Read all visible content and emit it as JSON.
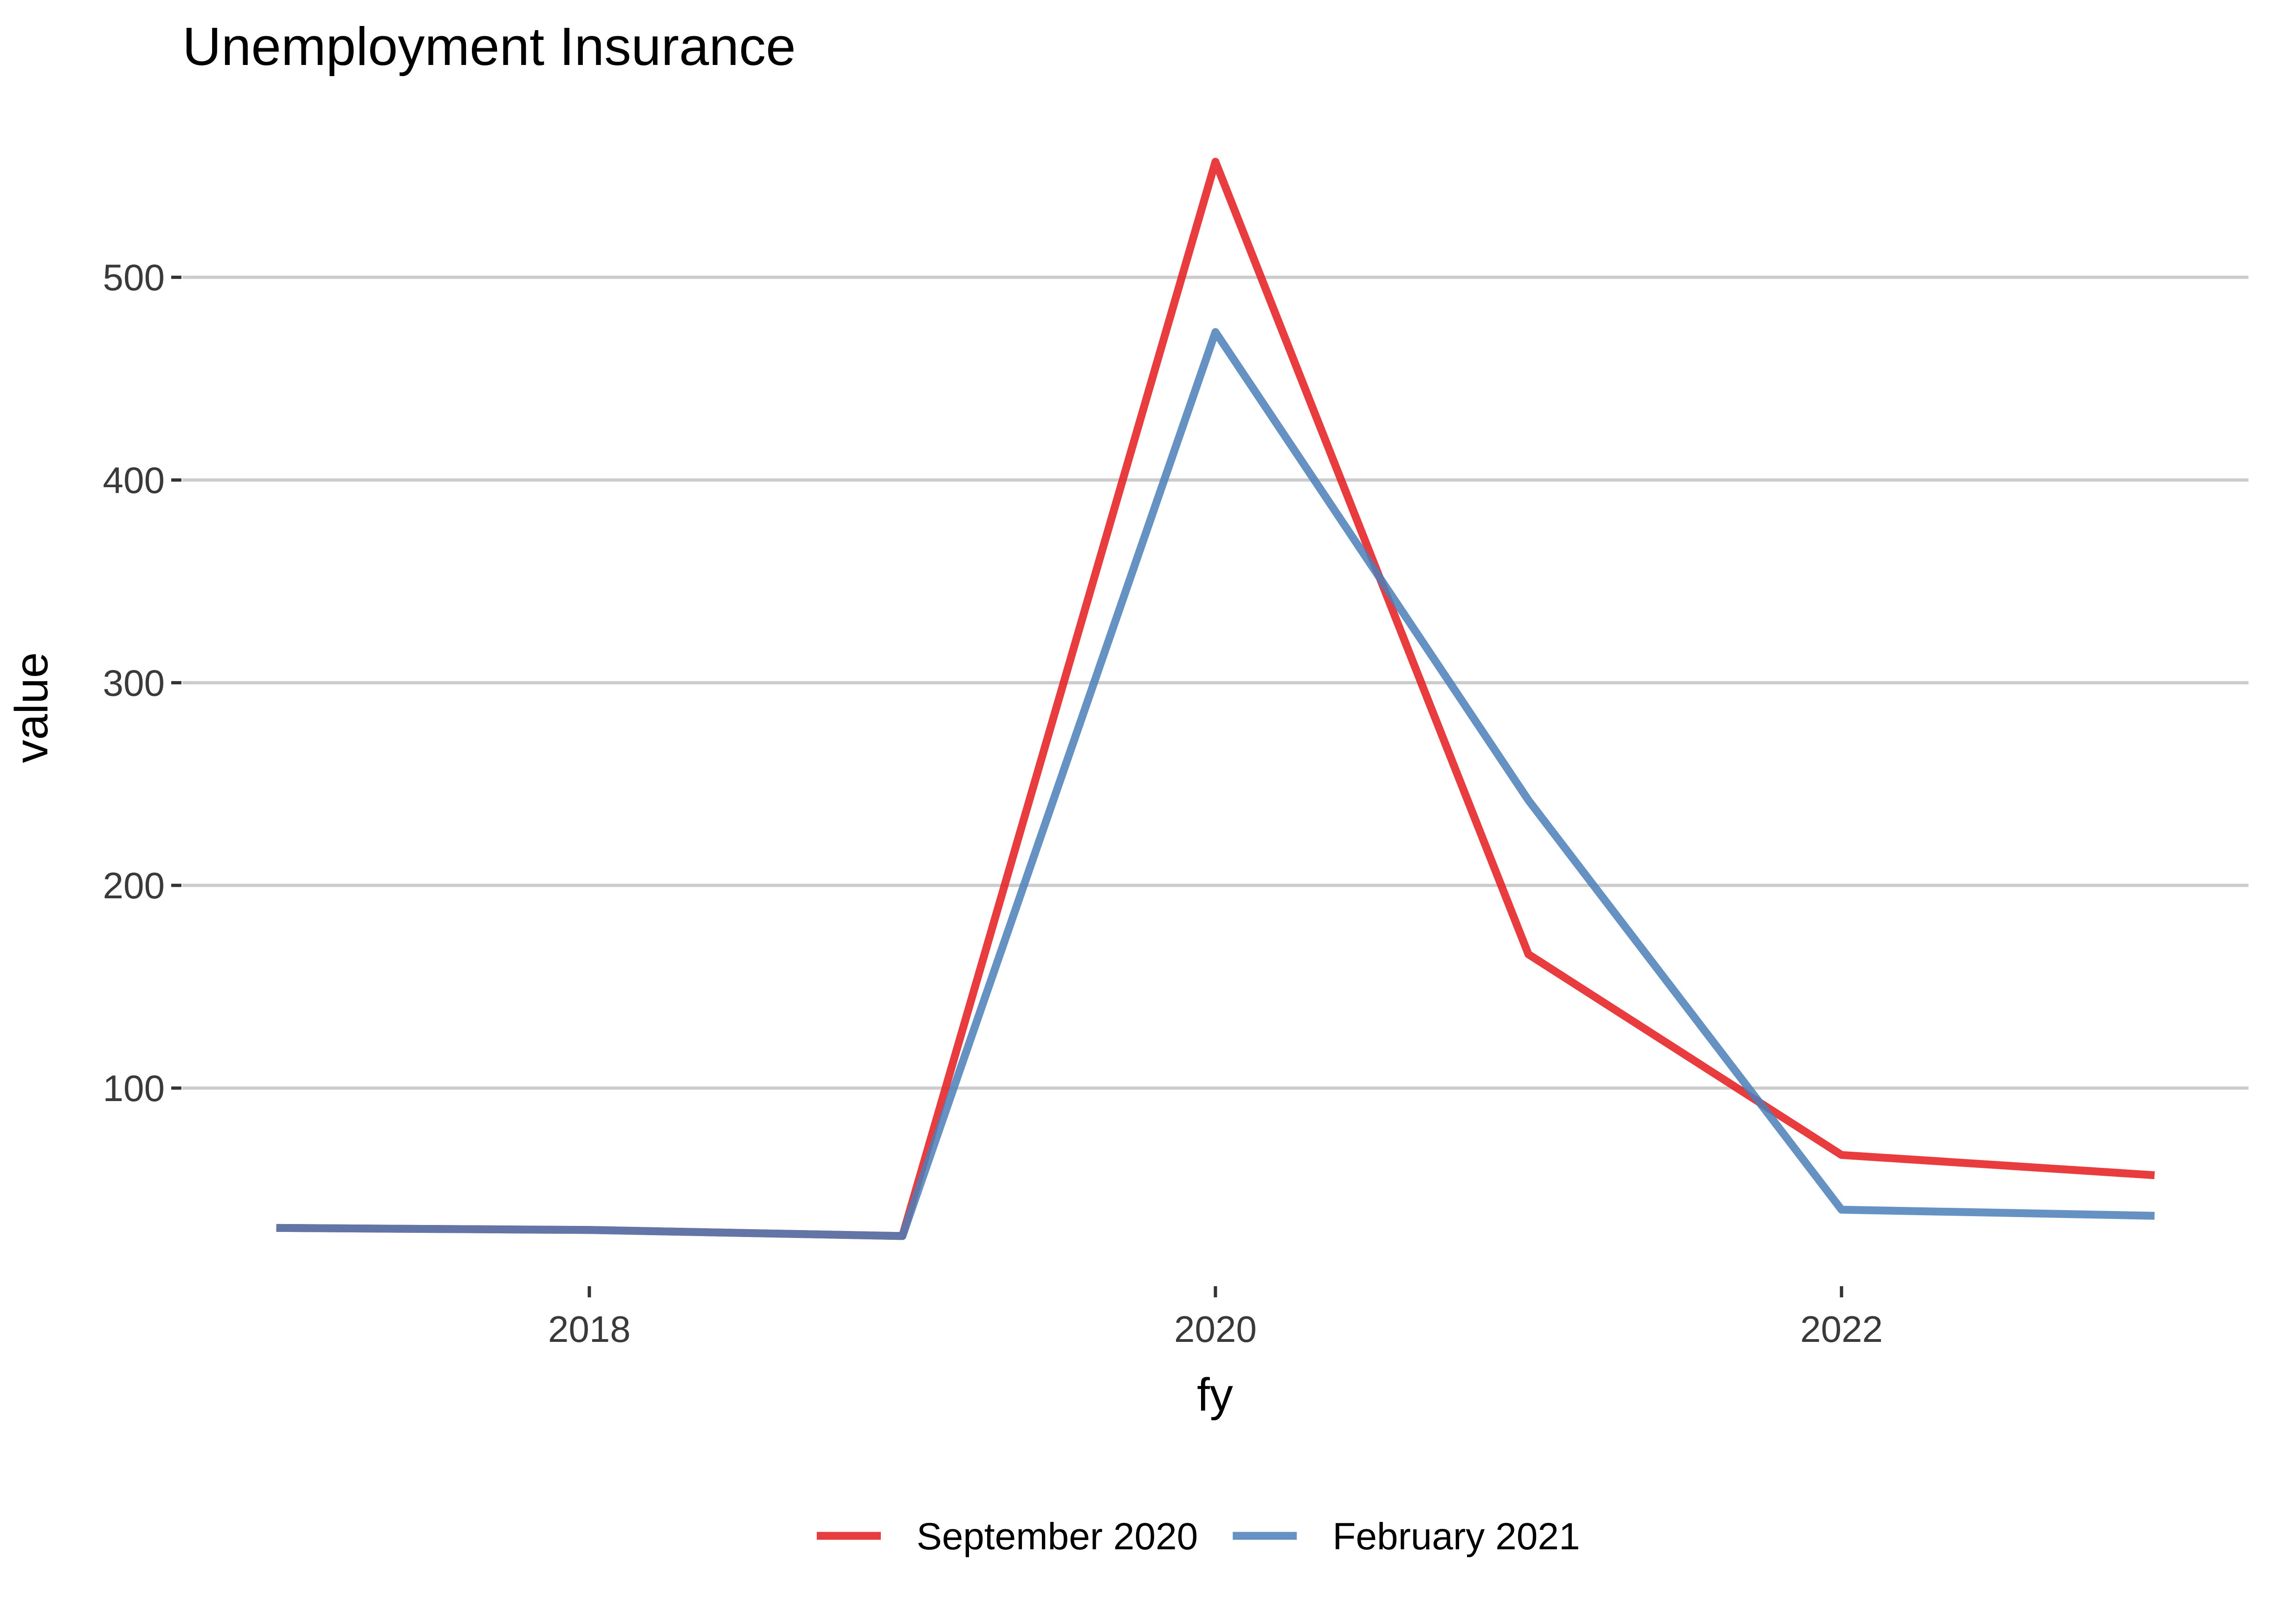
{
  "chart_data": {
    "type": "line",
    "title": "Unemployment Insurance",
    "xlabel": "fy",
    "ylabel": "value",
    "x": [
      2017,
      2018,
      2019,
      2020,
      2021,
      2022,
      2023
    ],
    "xlim": [
      2016.7,
      2023.3
    ],
    "ylim": [
      5,
      575
    ],
    "xticks": [
      2018,
      2020,
      2022
    ],
    "yticks": [
      100,
      200,
      300,
      400,
      500
    ],
    "grid": "horizontal-major",
    "legend_position": "bottom",
    "series": [
      {
        "name": "September 2020",
        "color": "#e41a1c",
        "values": [
          31,
          30,
          27,
          557,
          166,
          67,
          57
        ]
      },
      {
        "name": "February 2021",
        "color": "#4a7fb8",
        "values": [
          31,
          30,
          27,
          473,
          242,
          40,
          37
        ]
      }
    ]
  }
}
